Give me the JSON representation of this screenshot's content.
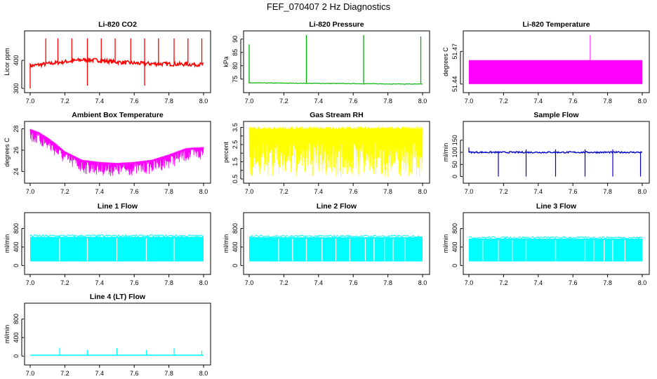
{
  "page": {
    "title": "FEF_070407  2 Hz Diagnostics"
  },
  "chart_data": [
    {
      "id": "p-co2",
      "type": "line",
      "title": "Li-820 CO2",
      "ylabel": "Licor ppm",
      "xlabel": "",
      "xlim": [
        7.0,
        8.0
      ],
      "ylim": [
        300,
        490
      ],
      "xticks": [
        7.0,
        7.2,
        7.4,
        7.6,
        7.8,
        8.0
      ],
      "yticks": [
        300,
        400
      ],
      "color": "#ff0000",
      "series": [
        {
          "x": [
            7.0,
            7.1,
            7.2,
            7.3,
            7.4,
            7.5,
            7.6,
            7.7,
            7.8,
            7.9,
            8.0
          ],
          "y": [
            380,
            388,
            395,
            402,
            400,
            394,
            390,
            388,
            387,
            386,
            385
          ]
        }
      ],
      "spikes": [
        {
          "x": 7.0,
          "y": 300
        },
        {
          "x": 7.09,
          "y": 478
        },
        {
          "x": 7.16,
          "y": 478
        },
        {
          "x": 7.24,
          "y": 478
        },
        {
          "x": 7.33,
          "y": 478
        },
        {
          "x": 7.33,
          "y": 310
        },
        {
          "x": 7.41,
          "y": 478
        },
        {
          "x": 7.49,
          "y": 478
        },
        {
          "x": 7.58,
          "y": 478
        },
        {
          "x": 7.66,
          "y": 478
        },
        {
          "x": 7.66,
          "y": 310
        },
        {
          "x": 7.74,
          "y": 478
        },
        {
          "x": 7.83,
          "y": 478
        },
        {
          "x": 7.91,
          "y": 478
        },
        {
          "x": 7.99,
          "y": 478
        }
      ]
    },
    {
      "id": "p-pressure",
      "type": "line",
      "title": "Li-820 Pressure",
      "ylabel": "kPa",
      "xlabel": "",
      "xlim": [
        7.0,
        8.0
      ],
      "ylim": [
        71.5,
        91.5
      ],
      "xticks": [
        7.0,
        7.2,
        7.4,
        7.6,
        7.8,
        8.0
      ],
      "yticks": [
        75,
        80,
        85,
        90
      ],
      "color": "#00b400",
      "series": [
        {
          "x": [
            7.0,
            7.2,
            7.4,
            7.6,
            7.8,
            8.0
          ],
          "y": [
            73.6,
            73.5,
            73.4,
            73.3,
            73.2,
            73.1
          ]
        }
      ],
      "spikes": [
        {
          "x": 7.0,
          "y": 88
        },
        {
          "x": 7.33,
          "y": 91.5
        },
        {
          "x": 7.66,
          "y": 91.5
        },
        {
          "x": 7.99,
          "y": 91
        }
      ]
    },
    {
      "id": "p-temp",
      "type": "area",
      "title": "Li-820 Temperature",
      "ylabel": "degrees C",
      "xlabel": "",
      "xlim": [
        7.0,
        8.0
      ],
      "ylim": [
        51.436,
        51.485
      ],
      "xticks": [
        7.0,
        7.2,
        7.4,
        7.6,
        7.8,
        8.0
      ],
      "yticks": [
        51.44,
        51.47
      ],
      "yticklabels": [
        "51.44",
        "51.47"
      ],
      "color": "#ff00ff",
      "band": [
        51.44,
        51.462
      ],
      "spikes": [
        {
          "x": 7.7,
          "y": 51.485
        }
      ]
    },
    {
      "id": "p-ambient",
      "type": "line",
      "title": "Ambient Box Temperature",
      "ylabel": "degrees C",
      "xlabel": "",
      "xlim": [
        7.0,
        8.0
      ],
      "ylim": [
        23.3,
        28.3
      ],
      "xticks": [
        7.0,
        7.2,
        7.4,
        7.6,
        7.8,
        8.0
      ],
      "yticks": [
        24,
        26,
        28
      ],
      "color": "#ff00ff",
      "series": [
        {
          "x": [
            7.0,
            7.05,
            7.1,
            7.15,
            7.2,
            7.3,
            7.4,
            7.5,
            7.6,
            7.7,
            7.8,
            7.9,
            8.0
          ],
          "y": [
            27.9,
            27.6,
            27.1,
            26.5,
            25.8,
            25.0,
            24.8,
            24.7,
            24.8,
            25.0,
            25.5,
            26.1,
            26.2
          ]
        }
      ],
      "noise_down": 1.2
    },
    {
      "id": "p-rh",
      "type": "line",
      "title": "Gas Stream RH",
      "ylabel": "percent",
      "xlabel": "",
      "xlim": [
        7.0,
        8.0
      ],
      "ylim": [
        0.5,
        3.6
      ],
      "xticks": [
        7.0,
        7.2,
        7.4,
        7.6,
        7.8,
        8.0
      ],
      "yticks": [
        0.5,
        1.0,
        1.5,
        2.0,
        2.5,
        3.0,
        3.5
      ],
      "yticklabels": [
        "0.5",
        "1.5",
        "2.5",
        "3.5"
      ],
      "yticklabel_values": [
        0.5,
        1.5,
        2.5,
        3.5
      ],
      "color": "#ffff00",
      "band": [
        2.6,
        3.4
      ],
      "noise_down_to": 0.6
    },
    {
      "id": "p-sample",
      "type": "line",
      "title": "Sample Flow",
      "ylabel": "ml/min",
      "xlabel": "",
      "xlim": [
        7.0,
        8.0
      ],
      "ylim": [
        -10,
        210
      ],
      "xticks": [
        7.0,
        7.2,
        7.4,
        7.6,
        7.8,
        8.0
      ],
      "yticks": [
        0,
        50,
        100,
        150
      ],
      "color": "#0000cc",
      "level": 100,
      "drops": [
        7.17,
        7.33,
        7.5,
        7.67,
        7.83,
        7.99
      ],
      "ups": [
        7.0,
        7.33,
        7.5,
        7.67,
        7.83
      ]
    },
    {
      "id": "p-line1",
      "type": "area",
      "title": "Line 1 Flow",
      "ylabel": "ml/min",
      "xlabel": "",
      "xlim": [
        7.0,
        8.0
      ],
      "ylim": [
        -100,
        1050
      ],
      "xticks": [
        7.0,
        7.2,
        7.4,
        7.6,
        7.8,
        8.0
      ],
      "yticks": [
        0,
        400,
        800
      ],
      "color": "#00ffff",
      "band": [
        90,
        620
      ],
      "gaps": [
        7.17,
        7.33,
        7.5,
        7.67,
        7.83
      ]
    },
    {
      "id": "p-line2",
      "type": "area",
      "title": "Line 2 Flow",
      "ylabel": "ml/min",
      "xlabel": "",
      "xlim": [
        7.0,
        8.0
      ],
      "ylim": [
        -100,
        1050
      ],
      "xticks": [
        7.0,
        7.2,
        7.4,
        7.6,
        7.8,
        8.0
      ],
      "yticks": [
        0,
        400,
        800
      ],
      "color": "#00ffff",
      "band": [
        90,
        610
      ],
      "gaps": [
        7.17,
        7.25,
        7.33,
        7.42,
        7.5,
        7.58,
        7.67,
        7.72,
        7.78,
        7.83,
        7.9
      ]
    },
    {
      "id": "p-line3",
      "type": "area",
      "title": "Line 3 Flow",
      "ylabel": "ml/min",
      "xlabel": "",
      "xlim": [
        7.0,
        8.0
      ],
      "ylim": [
        -100,
        1050
      ],
      "xticks": [
        7.0,
        7.2,
        7.4,
        7.6,
        7.8,
        8.0
      ],
      "yticks": [
        0,
        400,
        800
      ],
      "color": "#00ffff",
      "band": [
        90,
        580
      ],
      "gaps": [
        7.08,
        7.17,
        7.25,
        7.33,
        7.5,
        7.67,
        7.72,
        7.78,
        7.83,
        7.9
      ]
    },
    {
      "id": "p-line4",
      "type": "line",
      "title": "Line 4 (LT) Flow",
      "ylabel": "ml/min",
      "xlabel": "",
      "xlim": [
        7.0,
        8.0
      ],
      "ylim": [
        -100,
        1050
      ],
      "xticks": [
        7.0,
        7.2,
        7.4,
        7.6,
        7.8,
        8.0
      ],
      "yticks": [
        0,
        400,
        800
      ],
      "color": "#00ffff",
      "level": 20,
      "spikes": [
        {
          "x": 7.17,
          "y": 180
        },
        {
          "x": 7.33,
          "y": 130
        },
        {
          "x": 7.5,
          "y": 170
        },
        {
          "x": 7.67,
          "y": 130
        },
        {
          "x": 7.83,
          "y": 170
        },
        {
          "x": 7.99,
          "y": 120
        }
      ]
    }
  ]
}
